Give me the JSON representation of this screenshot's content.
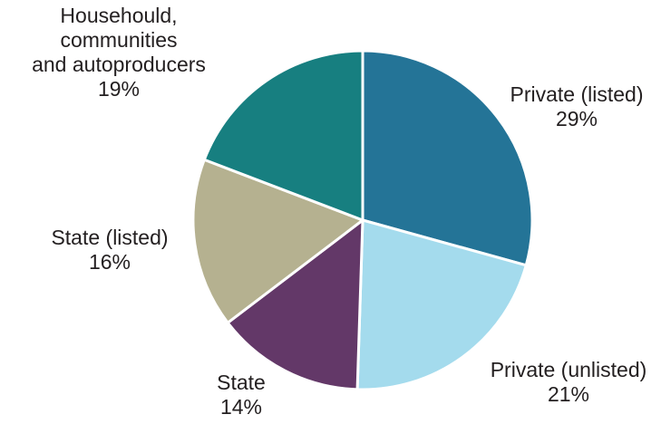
{
  "chart_data": {
    "type": "pie",
    "title": "",
    "start": "12 o'clock, clockwise",
    "slices": [
      {
        "label_lines": [
          "Private (listed)"
        ],
        "value_text": "29%",
        "value": 29,
        "color": "#247497"
      },
      {
        "label_lines": [
          "Private (unlisted)"
        ],
        "value_text": "21%",
        "value": 21,
        "color": "#a4dbed"
      },
      {
        "label_lines": [
          "State"
        ],
        "value_text": "14%",
        "value": 14,
        "color": "#633868"
      },
      {
        "label_lines": [
          "State (listed)"
        ],
        "value_text": "16%",
        "value": 16,
        "color": "#b5b190"
      },
      {
        "label_lines": [
          "Househould,",
          "communities",
          "and autoproducers"
        ],
        "value_text": "19%",
        "value": 19,
        "color": "#177f80"
      }
    ]
  }
}
